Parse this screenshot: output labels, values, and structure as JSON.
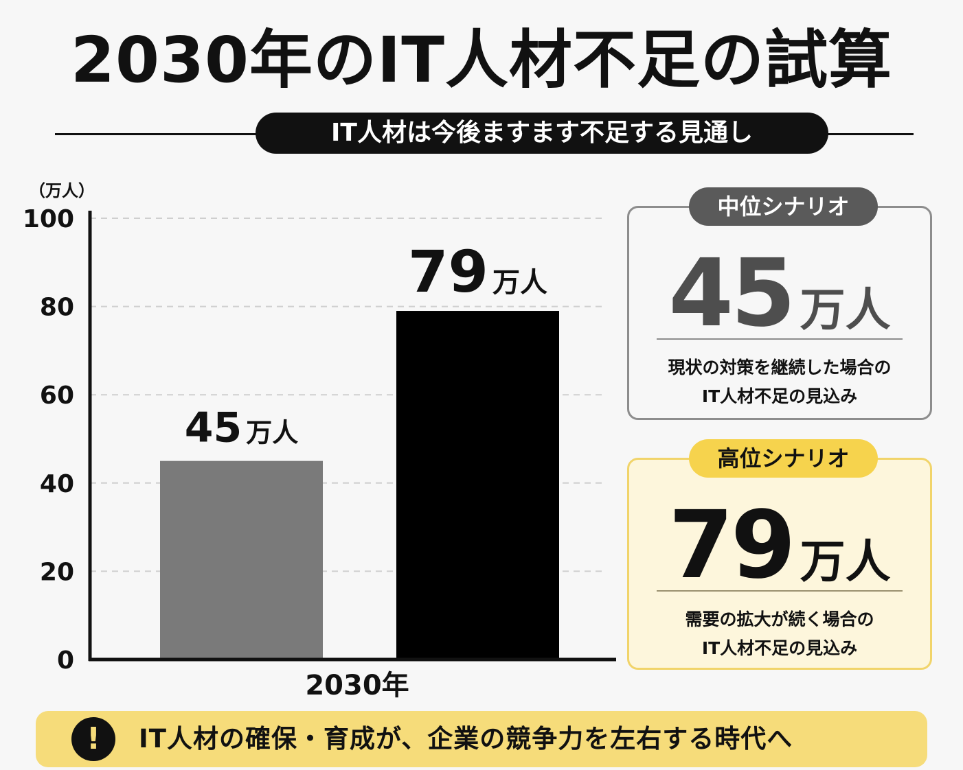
{
  "title": "2030年のIT人材不足の試算",
  "subtitle": "IT人材は今後ますます不足する見通し",
  "chart_data": {
    "type": "bar",
    "unit_label": "（万人）",
    "categories": [
      "2030年"
    ],
    "series": [
      {
        "values": [
          45
        ],
        "color": "#7a7a7a",
        "data_label": "45",
        "data_label_unit": "万人"
      },
      {
        "values": [
          79
        ],
        "color": "#000000",
        "data_label": "79",
        "data_label_unit": "万人"
      }
    ],
    "ylim": [
      0,
      100
    ],
    "yticks": [
      0,
      20,
      40,
      60,
      80,
      100
    ],
    "grid": true
  },
  "cards": {
    "mid": {
      "badge": "中位シナリオ",
      "value": "45",
      "unit": "万人",
      "desc_line1": "現状の対策を継続した場合の",
      "desc_line2": "IT人材不足の見込み"
    },
    "high": {
      "badge": "高位シナリオ",
      "value": "79",
      "unit": "万人",
      "desc_line1": "需要の拡大が続く場合の",
      "desc_line2": "IT人材不足の見込み"
    }
  },
  "banner": {
    "icon": "exclamation-icon",
    "icon_glyph": "!",
    "text": "IT人材の確保・育成が、企業の競争力を左右する時代へ"
  },
  "colors": {
    "accent_yellow": "#f6dc7a",
    "bar_mid": "#7a7a7a",
    "bar_high": "#000000"
  }
}
